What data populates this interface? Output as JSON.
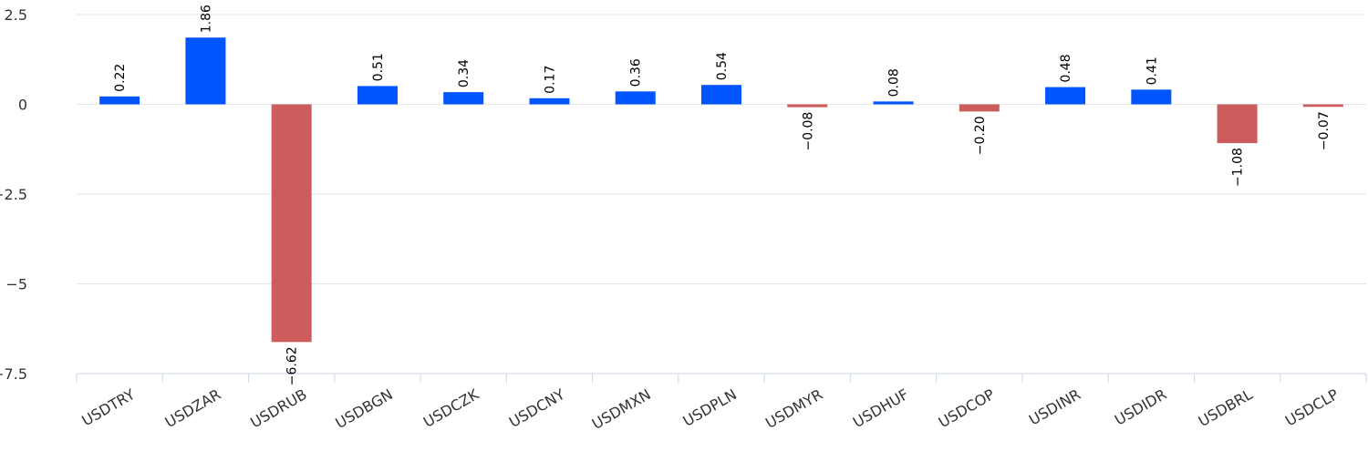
{
  "chart_data": {
    "type": "bar",
    "categories": [
      "USDTRY",
      "USDZAR",
      "USDRUB",
      "USDBGN",
      "USDCZK",
      "USDCNY",
      "USDMXN",
      "USDPLN",
      "USDMYR",
      "USDHUF",
      "USDCOP",
      "USDINR",
      "USDIDR",
      "USDBRL",
      "USDCLP"
    ],
    "values": [
      0.22,
      1.86,
      -6.62,
      0.51,
      0.34,
      0.17,
      0.36,
      0.54,
      -0.08,
      0.08,
      -0.2,
      0.48,
      0.41,
      -1.08,
      -0.07
    ],
    "data_labels": [
      "0.22",
      "1.86",
      "−6.62",
      "0.51",
      "0.34",
      "0.17",
      "0.36",
      "0.54",
      "−0.08",
      "0.08",
      "−0.20",
      "0.48",
      "0.41",
      "−1.08",
      "−0.07"
    ],
    "yticks": [
      2.5,
      0,
      -2.5,
      -5,
      -7.5
    ],
    "ytick_labels": [
      "2.5",
      "0",
      "−2.5",
      "−5",
      "−7.5"
    ],
    "ylim": [
      -7.5,
      2.5
    ],
    "grid": true,
    "legend": "none",
    "colors": {
      "positive": "#0055ff",
      "negative": "#cd5c5c"
    }
  }
}
